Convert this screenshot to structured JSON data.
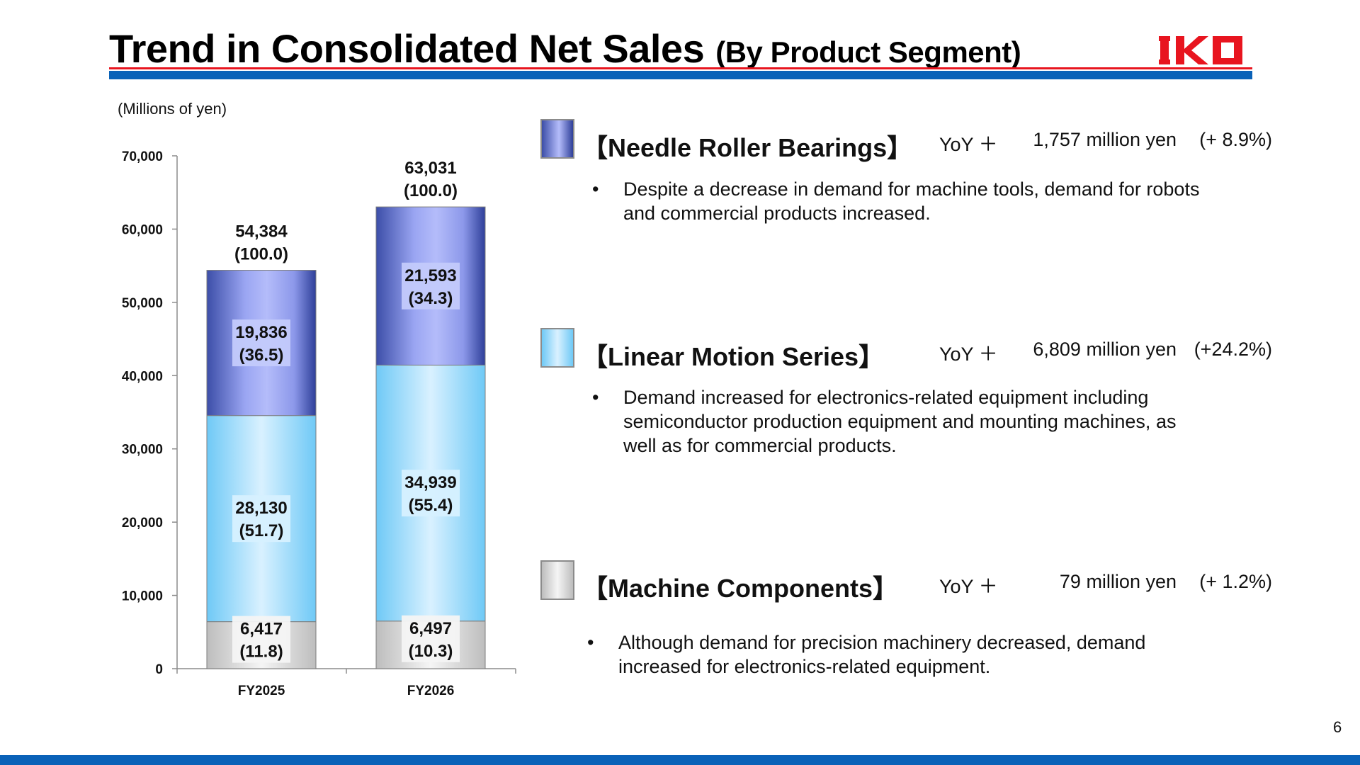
{
  "header": {
    "title_main": "Trend in Consolidated Net Sales",
    "title_sub": "(By Product Segment)",
    "logo_text": "IKO",
    "units": "(Millions of yen)"
  },
  "page_number": "6",
  "colors": {
    "brand_blue": "#0a62b8",
    "brand_red": "#e8151f",
    "needle_dark": "#3c4ea8",
    "needle_light": "#b4bcfa",
    "linear_dark": "#6fc9f6",
    "linear_light": "#d9f1ff",
    "machine_dark": "#bdbdbd",
    "machine_light": "#f5f5f5"
  },
  "chart_data": {
    "type": "bar",
    "stacked": true,
    "categories": [
      "FY2025",
      "FY2026"
    ],
    "series": [
      {
        "key": "machine",
        "values": [
          6417,
          6497
        ],
        "shares": [
          "(11.8)",
          "(10.3)"
        ],
        "labels": [
          "6,417",
          "6,497"
        ]
      },
      {
        "key": "linear",
        "values": [
          28130,
          34939
        ],
        "shares": [
          "(51.7)",
          "(55.4)"
        ],
        "labels": [
          "28,130",
          "34,939"
        ]
      },
      {
        "key": "needle",
        "values": [
          19836,
          21593
        ],
        "shares": [
          "(36.5)",
          "(34.3)"
        ],
        "labels": [
          "19,836",
          "21,593"
        ]
      }
    ],
    "totals": [
      54384,
      63031
    ],
    "total_labels": [
      "54,384",
      "63,031"
    ],
    "total_shares": [
      "(100.0)",
      "(100.0)"
    ],
    "ylim": [
      0,
      70000
    ],
    "yticks": [
      0,
      10000,
      20000,
      30000,
      40000,
      50000,
      60000,
      70000
    ],
    "ytick_labels": [
      "0",
      "10,000",
      "20,000",
      "30,000",
      "40,000",
      "50,000",
      "60,000",
      "70,000"
    ],
    "grid": false,
    "legend": "none"
  },
  "segments": [
    {
      "title": "【Needle Roller Bearings】",
      "yoy_label": "YoY ＋",
      "yoy_amount": "1,757 million yen",
      "yoy_pct": "(+  8.9%)",
      "bullet": "•",
      "description": "Despite a decrease in demand for machine tools, demand for robots and commercial products increased."
    },
    {
      "title": "【Linear Motion Series】",
      "yoy_label": "YoY ＋",
      "yoy_amount": "6,809 million yen",
      "yoy_pct": "(+24.2%)",
      "bullet": "•",
      "description": "Demand increased for electronics-related equipment including semiconductor production equipment and mounting machines, as well as for commercial products."
    },
    {
      "title": "【Machine Components】",
      "yoy_label": "YoY ＋",
      "yoy_amount": "79 million yen",
      "yoy_pct": "(+  1.2%)",
      "bullet": "•",
      "description": "Although demand for precision machinery decreased, demand increased for electronics-related equipment."
    }
  ]
}
